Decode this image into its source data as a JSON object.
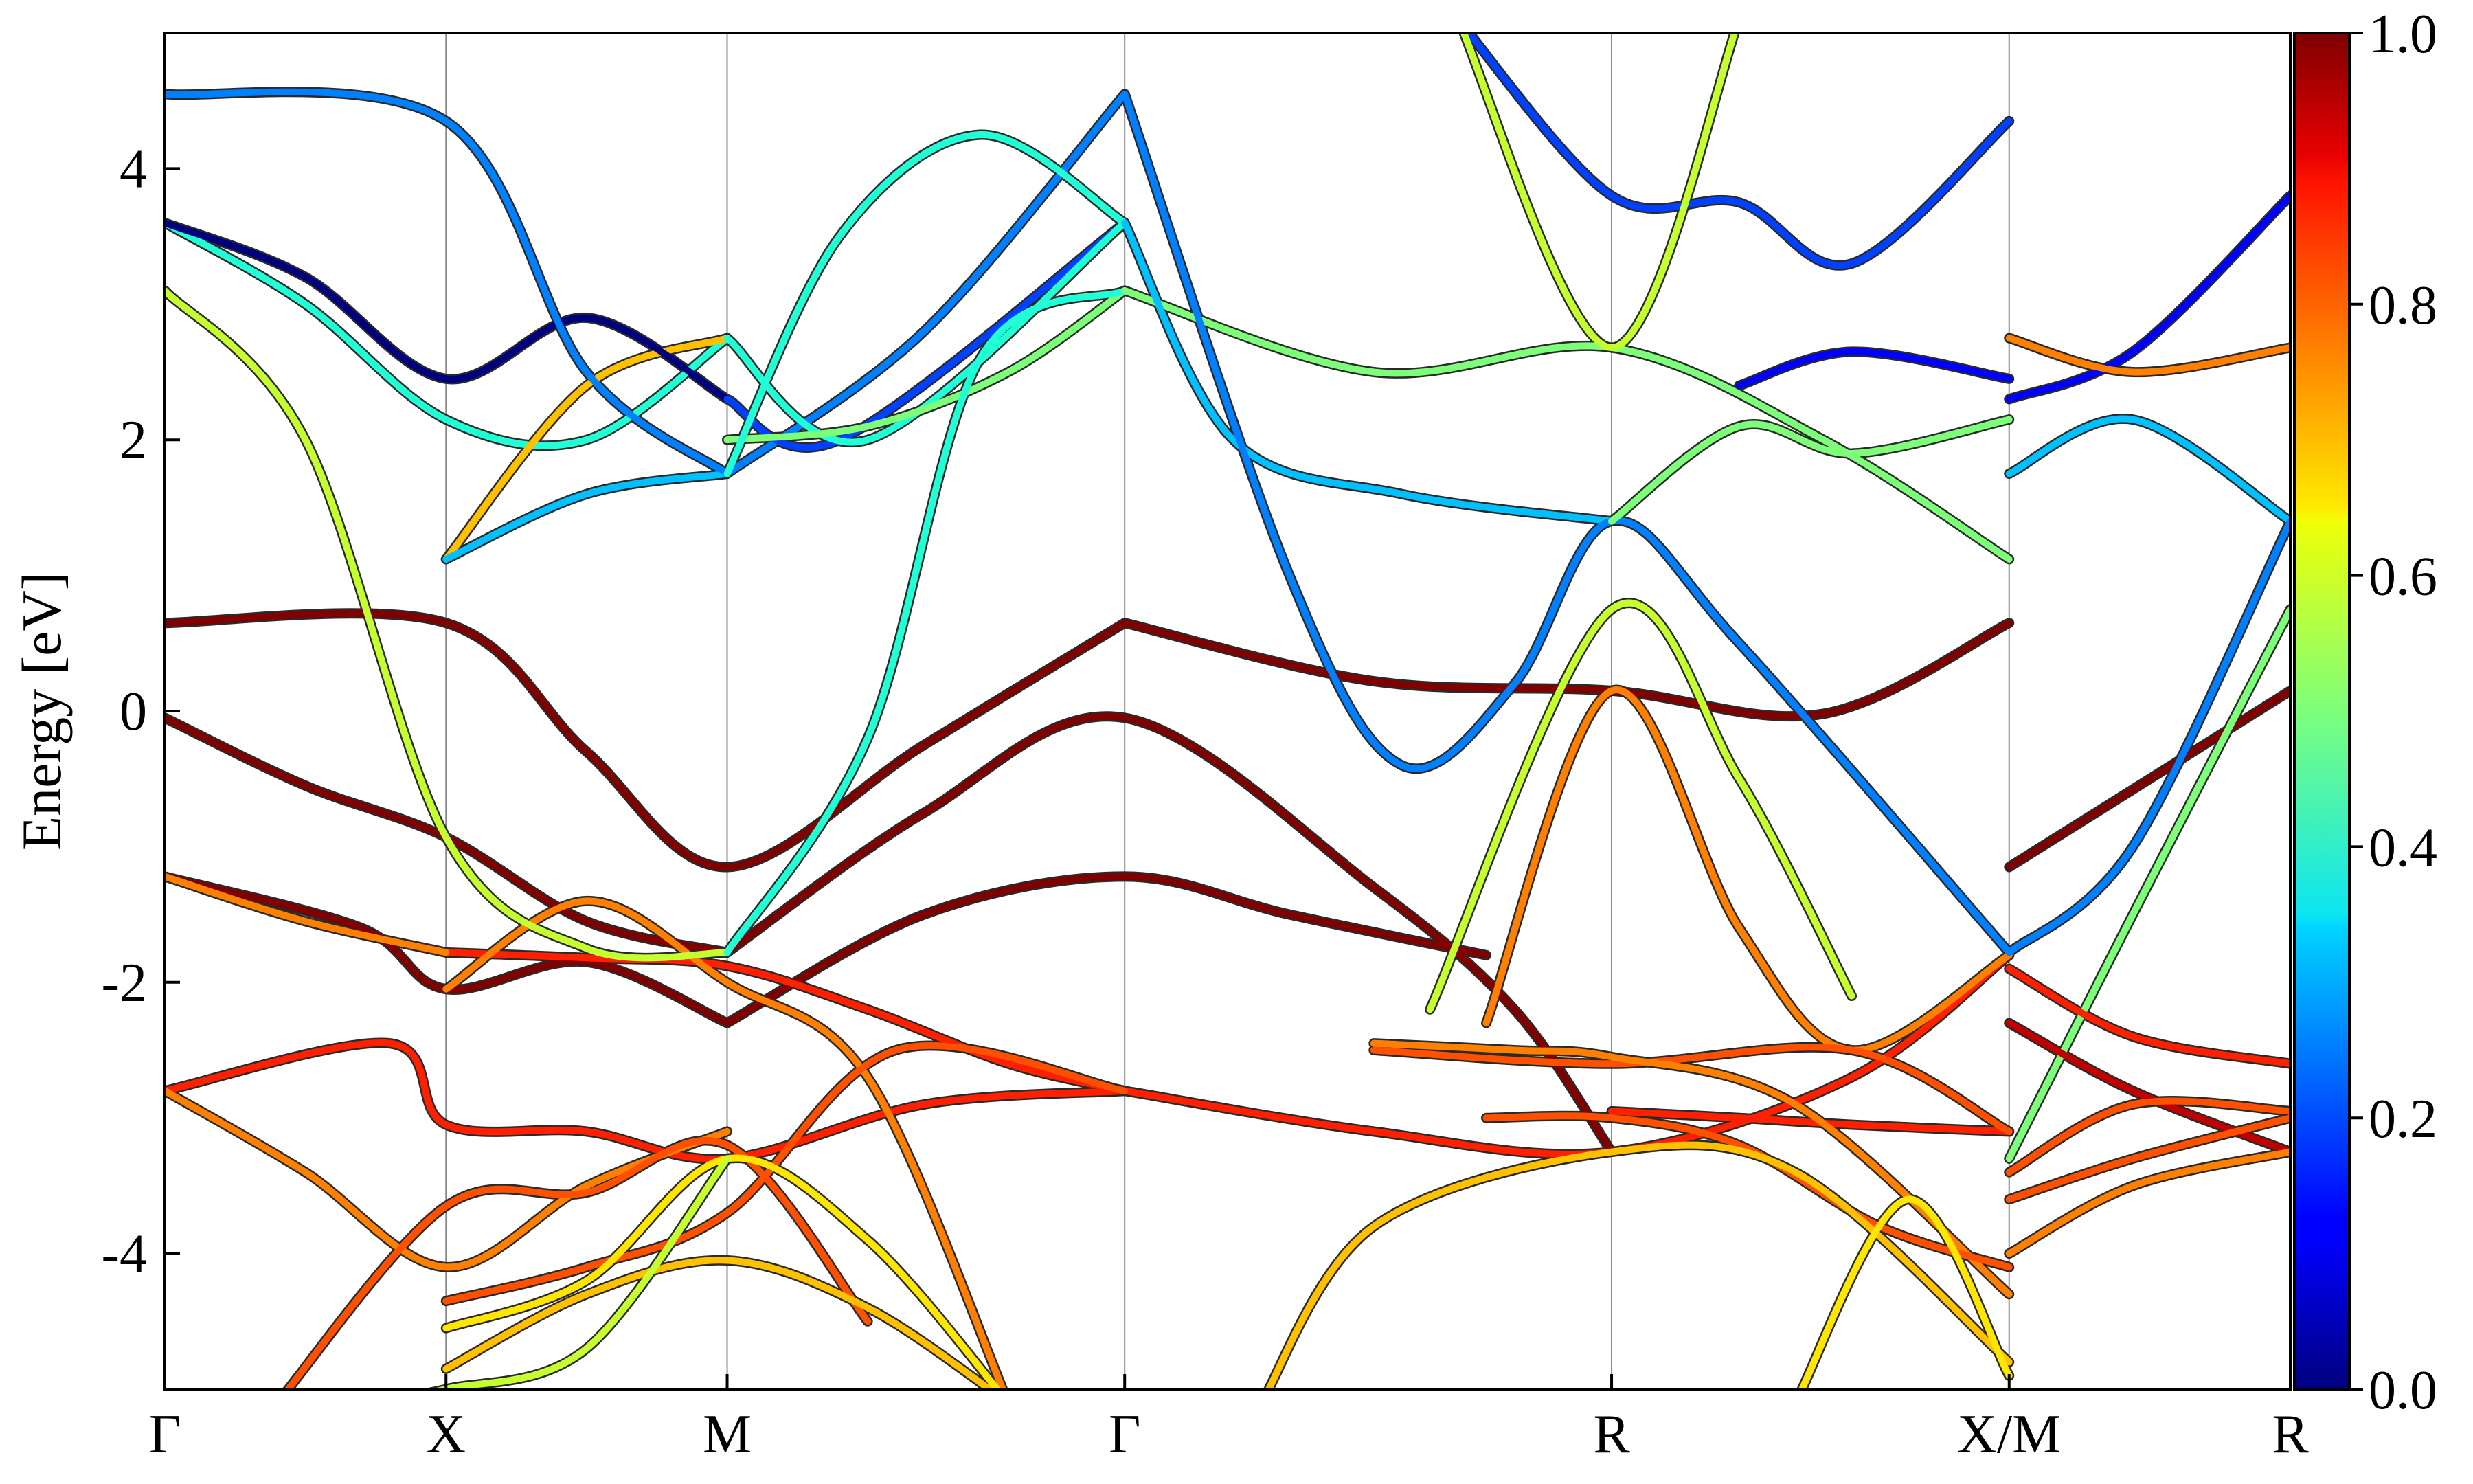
{
  "chart_data": {
    "type": "line",
    "title": "",
    "xlabel": "",
    "ylabel": "Energy [eV]",
    "ylim": [
      -5,
      5
    ],
    "yticks": [
      "-4",
      "-2",
      "0",
      "2",
      "4"
    ],
    "ytick_values": [
      -4,
      -2,
      0,
      2,
      4
    ],
    "kpath_labels": [
      "Γ",
      "X",
      "M",
      "Γ",
      "R",
      "X/M",
      "R"
    ],
    "kpath_positions": [
      0,
      1,
      2,
      3.414,
      5.146,
      6.56,
      7.56
    ],
    "grid": "vertical lines at high-symmetry points",
    "colorbar": {
      "colormap": "jet",
      "range": [
        0,
        1
      ],
      "ticks": [
        "0.0",
        "0.2",
        "0.4",
        "0.6",
        "0.8",
        "1.0"
      ],
      "tick_values": [
        0,
        0.2,
        0.4,
        0.6,
        0.8,
        1.0
      ]
    },
    "colors": {
      "c0": "#00007f",
      "c01": "#0000ff",
      "c02": "#0040ff",
      "c025": "#0080ff",
      "c03": "#00c0ff",
      "c04": "#20ffd6",
      "c05": "#7dff7a",
      "c06": "#c6ff30",
      "c065": "#ffe600",
      "c07": "#ffc000",
      "c08": "#ff8000",
      "c085": "#ff5000",
      "c09": "#ff2000",
      "c095": "#c00000",
      "c1": "#800000"
    },
    "series": [
      {
        "color": "c1",
        "x": [
          0,
          1,
          1.5,
          2,
          2.7,
          3.414
        ],
        "y": [
          0.65,
          0.65,
          -0.3,
          -1.15,
          -0.25,
          0.65
        ]
      },
      {
        "color": "c1",
        "x": [
          3.414,
          4.3,
          5.146,
          5.9,
          6.56
        ],
        "y": [
          0.65,
          0.22,
          0.15,
          -0.02,
          0.65
        ]
      },
      {
        "color": "c1",
        "x": [
          6.56,
          7.56
        ],
        "y": [
          -1.15,
          0.15
        ]
      },
      {
        "color": "c1",
        "x": [
          0,
          0.5,
          1,
          1.5,
          2
        ],
        "y": [
          -0.05,
          -0.55,
          -0.93,
          -1.55,
          -1.78
        ]
      },
      {
        "color": "c1",
        "x": [
          2,
          2.7,
          3.414,
          4.3,
          4.8,
          5.146
        ],
        "y": [
          -1.78,
          -0.75,
          -0.05,
          -1.3,
          -2.2,
          -3.25
        ]
      },
      {
        "color": "c1",
        "x": [
          0,
          0.7,
          1,
          1.5,
          2
        ],
        "y": [
          -1.22,
          -1.6,
          -2.05,
          -1.85,
          -2.3
        ]
      },
      {
        "color": "c1",
        "x": [
          2,
          2.7,
          3.414,
          4.0,
          4.7
        ],
        "y": [
          -2.3,
          -1.5,
          -1.22,
          -1.5,
          -1.8
        ]
      },
      {
        "color": "c09",
        "x": [
          0,
          0.8,
          1,
          1.5,
          2,
          2.7,
          3.414
        ],
        "y": [
          -2.8,
          -2.45,
          -3.05,
          -3.1,
          -3.3,
          -2.9,
          -2.8
        ]
      },
      {
        "color": "c09",
        "x": [
          3.414,
          4.3,
          5.146,
          6.0,
          6.56
        ],
        "y": [
          -2.8,
          -3.1,
          -3.25,
          -2.7,
          -1.8
        ]
      },
      {
        "color": "c09",
        "x": [
          1,
          1.5,
          2,
          2.5,
          3.0,
          3.414
        ],
        "y": [
          -1.78,
          -1.82,
          -1.88,
          -2.2,
          -2.6,
          -2.8
        ]
      },
      {
        "color": "c08",
        "x": [
          0,
          0.5,
          1,
          1.5,
          2
        ],
        "y": [
          -2.8,
          -3.4,
          -4.1,
          -3.5,
          -3.1
        ]
      },
      {
        "color": "c08",
        "x": [
          1,
          1.5,
          2,
          2.5,
          3.0
        ],
        "y": [
          -2.05,
          -1.4,
          -2.0,
          -2.7,
          -5.1
        ]
      },
      {
        "color": "c085",
        "x": [
          0.4,
          1,
          1.5,
          2,
          2.5
        ],
        "y": [
          -5.1,
          -3.65,
          -3.55,
          -3.2,
          -4.5
        ]
      },
      {
        "color": "c085",
        "x": [
          1,
          1.5,
          2,
          2.6,
          3.414
        ],
        "y": [
          -4.35,
          -4.1,
          -3.7,
          -2.5,
          -2.8
        ]
      },
      {
        "color": "c07",
        "x": [
          1,
          1.5,
          2,
          2.5,
          3.0
        ],
        "y": [
          -4.85,
          -4.3,
          -4.05,
          -4.4,
          -5.1
        ]
      },
      {
        "color": "c065",
        "x": [
          1,
          1.5,
          2,
          2.5,
          3.0
        ],
        "y": [
          -4.55,
          -4.2,
          -3.3,
          -3.9,
          -5.1
        ]
      },
      {
        "color": "c06",
        "x": [
          0.7,
          1,
          1.5,
          2
        ],
        "y": [
          -5.1,
          -5.0,
          -4.7,
          -3.3
        ]
      },
      {
        "color": "c08",
        "x": [
          0,
          0.5,
          1
        ],
        "y": [
          -1.22,
          -1.55,
          -1.78
        ]
      },
      {
        "color": "c06",
        "x": [
          0,
          0.5,
          1,
          1.5,
          2
        ],
        "y": [
          3.1,
          2.0,
          -0.93,
          -1.75,
          -1.78
        ]
      },
      {
        "color": "c04",
        "x": [
          0,
          0.5,
          1,
          1.5,
          2
        ],
        "y": [
          3.6,
          3.0,
          2.15,
          2.0,
          2.75
        ]
      },
      {
        "color": "c07",
        "x": [
          1,
          1.5,
          2
        ],
        "y": [
          1.12,
          2.4,
          2.75
        ]
      },
      {
        "color": "c03",
        "x": [
          1,
          1.5,
          2
        ],
        "y": [
          1.12,
          1.6,
          1.75
        ]
      },
      {
        "color": "c0",
        "x": [
          0,
          0.5,
          1,
          1.5,
          2
        ],
        "y": [
          3.6,
          3.2,
          2.45,
          2.9,
          2.3
        ]
      },
      {
        "color": "c025",
        "x": [
          0,
          1,
          1.5,
          2
        ],
        "y": [
          4.55,
          4.35,
          2.5,
          1.75
        ]
      },
      {
        "color": "c025",
        "x": [
          2,
          2.7,
          3.414
        ],
        "y": [
          1.75,
          2.8,
          4.55
        ]
      },
      {
        "color": "c02",
        "x": [
          2,
          2.4,
          3.414
        ],
        "y": [
          2.3,
          2.0,
          3.6
        ]
      },
      {
        "color": "c04",
        "x": [
          2,
          2.5,
          3.414
        ],
        "y": [
          2.75,
          2.0,
          3.6
        ]
      },
      {
        "color": "c05",
        "x": [
          2,
          2.5,
          3.0,
          3.414
        ],
        "y": [
          2.0,
          2.1,
          2.5,
          3.1
        ]
      },
      {
        "color": "c04",
        "x": [
          2,
          2.5,
          2.9,
          3.414
        ],
        "y": [
          -1.78,
          -0.2,
          2.6,
          3.1
        ]
      },
      {
        "color": "c04",
        "x": [
          2,
          2.4,
          2.9,
          3.414
        ],
        "y": [
          1.75,
          3.5,
          4.25,
          3.6
        ]
      },
      {
        "color": "c05",
        "x": [
          3.414,
          4.3,
          5.146,
          5.9,
          6.56
        ],
        "y": [
          3.1,
          2.5,
          2.68,
          2.0,
          1.12
        ]
      },
      {
        "color": "c03",
        "x": [
          3.414,
          3.8,
          4.4,
          5.146
        ],
        "y": [
          3.6,
          2.0,
          1.6,
          1.4
        ]
      },
      {
        "color": "c025",
        "x": [
          3.414,
          4.0,
          4.4,
          4.8,
          5.146,
          5.6,
          6.56
        ],
        "y": [
          4.55,
          1.0,
          -0.4,
          0.2,
          1.4,
          0.5,
          -1.78
        ]
      },
      {
        "color": "c05",
        "x": [
          5.146,
          5.6,
          6.0,
          6.56
        ],
        "y": [
          1.4,
          2.1,
          1.9,
          2.15
        ]
      },
      {
        "color": "c06",
        "x": [
          4.5,
          5.146,
          5.6,
          6.0
        ],
        "y": [
          -2.2,
          0.75,
          -0.5,
          -2.1
        ]
      },
      {
        "color": "c08",
        "x": [
          4.7,
          5.146,
          5.6,
          6.0,
          6.56
        ],
        "y": [
          -2.3,
          0.15,
          -1.6,
          -2.5,
          -1.8
        ]
      },
      {
        "color": "c02",
        "x": [
          4.6,
          5.146,
          5.6,
          6.0,
          6.56
        ],
        "y": [
          5.1,
          3.8,
          3.75,
          3.3,
          4.35
        ]
      },
      {
        "color": "c06",
        "x": [
          4.6,
          5.146,
          5.6
        ],
        "y": [
          5.1,
          2.68,
          5.1
        ]
      },
      {
        "color": "c01",
        "x": [
          5.6,
          6.0,
          6.56
        ],
        "y": [
          2.4,
          2.65,
          2.45
        ]
      },
      {
        "color": "c09",
        "x": [
          5.146,
          5.6,
          6.0,
          6.56
        ],
        "y": [
          -2.95,
          -3.0,
          -3.05,
          -3.1
        ]
      },
      {
        "color": "c085",
        "x": [
          4.3,
          5.146,
          6.0,
          6.56
        ],
        "y": [
          -2.5,
          -2.6,
          -2.5,
          -3.1
        ]
      },
      {
        "color": "c08",
        "x": [
          4.3,
          4.8,
          5.146,
          5.8,
          6.56
        ],
        "y": [
          -2.45,
          -2.5,
          -2.55,
          -2.9,
          -4.3
        ]
      },
      {
        "color": "c085",
        "x": [
          4.7,
          5.146,
          5.6,
          6.1,
          6.56
        ],
        "y": [
          -3.0,
          -3.0,
          -3.2,
          -3.8,
          -4.1
        ]
      },
      {
        "color": "c07",
        "x": [
          3.9,
          4.3,
          5.146,
          5.8,
          6.56
        ],
        "y": [
          -5.1,
          -3.8,
          -3.25,
          -3.4,
          -4.8
        ]
      },
      {
        "color": "c065",
        "x": [
          5.8,
          6.2,
          6.56
        ],
        "y": [
          -5.1,
          -3.6,
          -4.9
        ]
      },
      {
        "color": "c01",
        "x": [
          6.56,
          7.0,
          7.56
        ],
        "y": [
          2.3,
          2.65,
          3.8
        ]
      },
      {
        "color": "c03",
        "x": [
          6.56,
          7.0,
          7.56
        ],
        "y": [
          1.75,
          2.15,
          1.4
        ]
      },
      {
        "color": "c025",
        "x": [
          6.56,
          7.0,
          7.56
        ],
        "y": [
          -1.78,
          -1.0,
          1.4
        ]
      },
      {
        "color": "c08",
        "x": [
          6.56,
          7.0,
          7.56
        ],
        "y": [
          2.75,
          2.5,
          2.68
        ]
      },
      {
        "color": "c05",
        "x": [
          6.56,
          7.0,
          7.56
        ],
        "y": [
          -3.3,
          -1.5,
          0.75
        ]
      },
      {
        "color": "c09",
        "x": [
          6.56,
          7.0,
          7.56
        ],
        "y": [
          -1.9,
          -2.4,
          -2.6
        ]
      },
      {
        "color": "c095",
        "x": [
          6.56,
          7.0,
          7.56
        ],
        "y": [
          -2.3,
          -2.8,
          -3.25
        ]
      },
      {
        "color": "c085",
        "x": [
          6.56,
          7.0,
          7.56
        ],
        "y": [
          -3.4,
          -2.9,
          -2.95
        ]
      },
      {
        "color": "c085",
        "x": [
          6.56,
          7.0,
          7.56
        ],
        "y": [
          -3.6,
          -3.3,
          -3.0
        ]
      },
      {
        "color": "c08",
        "x": [
          6.56,
          7.0,
          7.56
        ],
        "y": [
          -4.0,
          -3.5,
          -3.25
        ]
      }
    ]
  }
}
